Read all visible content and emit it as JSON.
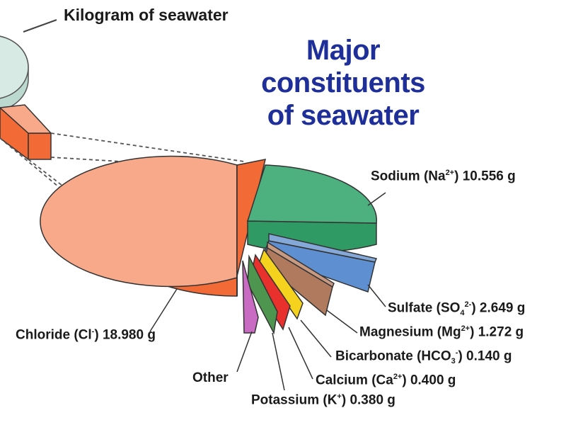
{
  "title_lines": [
    "Major",
    "constituents",
    "of seawater"
  ],
  "kilogram_label": "Kilogram of seawater",
  "colors": {
    "title": "#1f2f9a",
    "chloride": "#f7a98a",
    "chloride_side": "#f26a35",
    "sodium": "#4cb07f",
    "sulfate": "#84a8d8",
    "magnesium": "#c99a82",
    "bicarbonate": "#f5d21e",
    "calcium": "#e8302c",
    "potassium": "#4e9650",
    "other": "#c96bc3",
    "kilogram": "#d7ebe4"
  },
  "labels": {
    "sodium": {
      "pre": "Sodium (Na",
      "sup": "2+",
      "post": ") 10.556 g"
    },
    "sulfate": {
      "pre": "Sulfate (SO",
      "sub": "4",
      "sup": "2-",
      "post": ") 2.649 g"
    },
    "magnesium": {
      "pre": "Magnesium (Mg",
      "sup": "2+",
      "post": ") 1.272 g"
    },
    "bicarbonate": {
      "pre": "Bicarbonate (HCO",
      "sub": "3",
      "sup": "-",
      "post": ") 0.140 g"
    },
    "calcium": {
      "pre": "Calcium (Ca",
      "sup": "2+",
      "post": ") 0.400 g"
    },
    "potassium": {
      "pre": "Potassium (K",
      "sup": "+",
      "post": ") 0.380 g"
    },
    "chloride": {
      "pre": "Chloride (Cl",
      "sup": "-",
      "post": ") 18.980 g"
    },
    "other": {
      "pre": "Other"
    }
  },
  "chart_data": {
    "type": "pie",
    "title": "Major constituents of seawater",
    "unit": "g",
    "slices": [
      {
        "name": "Chloride (Cl-)",
        "value": 18.98
      },
      {
        "name": "Sodium (Na2+)",
        "value": 10.556
      },
      {
        "name": "Sulfate (SO4 2-)",
        "value": 2.649
      },
      {
        "name": "Magnesium (Mg2+)",
        "value": 1.272
      },
      {
        "name": "Bicarbonate (HCO3-)",
        "value": 0.14
      },
      {
        "name": "Calcium (Ca2+)",
        "value": 0.4
      },
      {
        "name": "Potassium (K+)",
        "value": 0.38
      },
      {
        "name": "Other",
        "value": null
      }
    ]
  }
}
